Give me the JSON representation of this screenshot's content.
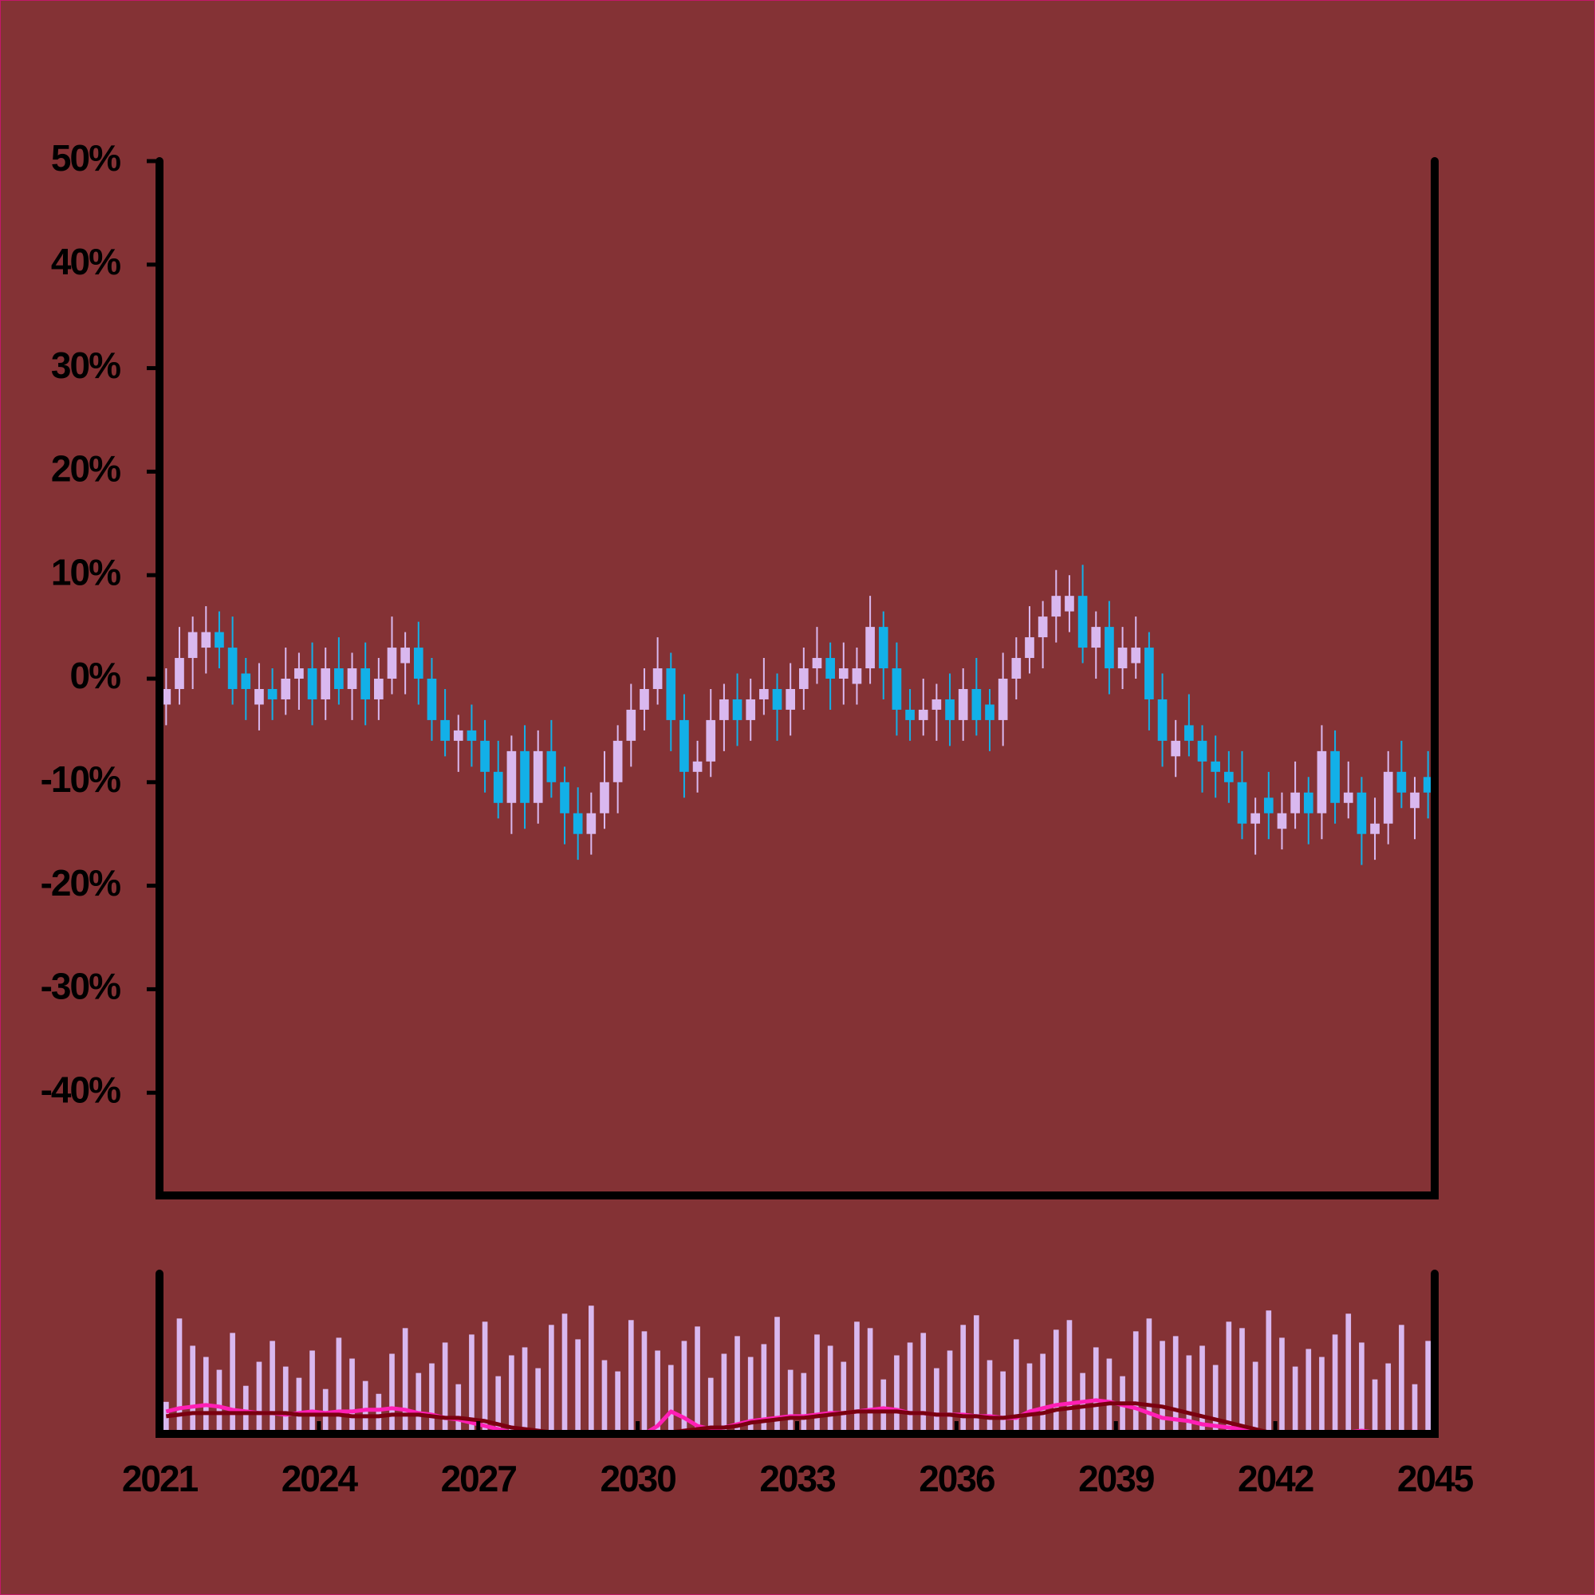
{
  "chart_data": {
    "type": "candlestick",
    "x": [
      2021.125,
      2021.375,
      2021.625,
      2021.875,
      2022.125,
      2022.375,
      2022.625,
      2022.875,
      2023.125,
      2023.375,
      2023.625,
      2023.875,
      2024.125,
      2024.375,
      2024.625,
      2024.875,
      2025.125,
      2025.375,
      2025.625,
      2025.875,
      2026.125,
      2026.375,
      2026.625,
      2026.875,
      2027.125,
      2027.375,
      2027.625,
      2027.875,
      2028.125,
      2028.375,
      2028.625,
      2028.875,
      2029.125,
      2029.375,
      2029.625,
      2029.875,
      2030.125,
      2030.375,
      2030.625,
      2030.875,
      2031.125,
      2031.375,
      2031.625,
      2031.875,
      2032.125,
      2032.375,
      2032.625,
      2032.875,
      2033.125,
      2033.375,
      2033.625,
      2033.875,
      2034.125,
      2034.375,
      2034.625,
      2034.875,
      2035.125,
      2035.375,
      2035.625,
      2035.875,
      2036.125,
      2036.375,
      2036.625,
      2036.875,
      2037.125,
      2037.375,
      2037.625,
      2037.875,
      2038.125,
      2038.375,
      2038.625,
      2038.875,
      2039.125,
      2039.375,
      2039.625,
      2039.875,
      2040.125,
      2040.375,
      2040.625,
      2040.875,
      2041.125,
      2041.375,
      2041.625,
      2041.875,
      2042.125,
      2042.375,
      2042.625,
      2042.875,
      2043.125,
      2043.375,
      2043.625,
      2043.875,
      2044.125,
      2044.375,
      2044.625,
      2044.875
    ],
    "open": [
      -2.5,
      -1,
      2,
      3,
      4.5,
      3,
      0.5,
      -2.5,
      -1,
      -2,
      0,
      1,
      -2,
      1,
      -1,
      1,
      -2,
      0,
      1.5,
      3,
      0,
      -4,
      -6,
      -5,
      -6,
      -9,
      -12,
      -7,
      -12,
      -7,
      -10,
      -13,
      -15,
      -13,
      -10,
      -6,
      -3,
      -1,
      1,
      -4,
      -9,
      -8,
      -4,
      -2,
      -4,
      -2,
      -1,
      -3,
      -1,
      1,
      2,
      0,
      -0.5,
      1,
      5,
      1,
      -3,
      -4,
      -3,
      -2,
      -4,
      -1,
      -2.5,
      -4,
      0,
      2,
      4,
      6,
      6.5,
      8,
      3,
      5,
      1,
      1.5,
      3,
      -2,
      -7.5,
      -4.5,
      -6,
      -8,
      -9,
      -10,
      -14,
      -11.5,
      -14.5,
      -13,
      -11,
      -13,
      -7,
      -12,
      -11,
      -15,
      -14,
      -9,
      -12.5,
      -9.5
    ],
    "high": [
      1,
      5,
      6,
      7,
      6.5,
      6,
      2,
      1.5,
      1,
      3,
      2.5,
      3.5,
      3,
      4,
      2.5,
      3.5,
      2,
      6,
      4.5,
      5.5,
      2,
      -1,
      -3.5,
      -2.5,
      -4,
      -6,
      -5.5,
      -4.5,
      -5,
      -4,
      -8.5,
      -10.5,
      -11,
      -7,
      -4.5,
      -0.5,
      1,
      4,
      2.5,
      -1.5,
      -6,
      -1,
      -0.5,
      0.5,
      0,
      2,
      0.5,
      1.5,
      3,
      5,
      3.5,
      3.5,
      3,
      8,
      6.5,
      3.5,
      -1,
      0,
      -0.5,
      0.5,
      1,
      2,
      -1,
      2.5,
      4,
      7,
      7.5,
      10.5,
      10,
      11,
      6.5,
      7.5,
      5,
      6,
      4.5,
      0.5,
      -4,
      -1.5,
      -4.5,
      -5.5,
      -7,
      -7,
      -11.5,
      -9,
      -11,
      -8,
      -9.5,
      -4.5,
      -5,
      -8,
      -9.5,
      -11.5,
      -7,
      -6,
      -9.5,
      -7
    ],
    "low": [
      -4.5,
      -2.5,
      -1,
      0.5,
      1,
      -2.5,
      -4,
      -5,
      -4,
      -3.5,
      -3,
      -4.5,
      -4,
      -2.5,
      -4,
      -4.5,
      -4,
      -1.5,
      -1.5,
      -2.5,
      -6,
      -7.5,
      -9,
      -8.5,
      -11,
      -13.5,
      -15,
      -14.5,
      -14,
      -11.5,
      -16,
      -17.5,
      -17,
      -14.5,
      -13,
      -8.5,
      -5,
      -2.5,
      -7,
      -11.5,
      -11,
      -9.5,
      -7,
      -6.5,
      -6,
      -3.5,
      -6,
      -5.5,
      -3,
      -0.5,
      -3,
      -2.5,
      -2.5,
      -0.5,
      -2,
      -5.5,
      -6,
      -5.5,
      -6,
      -6.5,
      -6,
      -5.5,
      -7,
      -6.5,
      -2,
      0.5,
      1,
      3.5,
      4.5,
      1.5,
      0,
      -1.5,
      -1,
      0,
      -5,
      -8.5,
      -9.5,
      -7.5,
      -11,
      -11.5,
      -12,
      -15.5,
      -17,
      -15.5,
      -16.5,
      -14.5,
      -16,
      -15.5,
      -14,
      -13.5,
      -18,
      -17.5,
      -16,
      -12.5,
      -15.5,
      -13.5
    ],
    "close": [
      -1,
      2,
      4.5,
      4.5,
      3,
      -1,
      -1,
      -1,
      -2,
      0,
      1,
      -2,
      1,
      -1,
      1,
      -2,
      0,
      3,
      3,
      0,
      -4,
      -6,
      -5,
      -6,
      -9,
      -12,
      -7,
      -12,
      -7,
      -10,
      -13,
      -15,
      -13,
      -10,
      -6,
      -3,
      -1,
      1,
      -4,
      -9,
      -8,
      -4,
      -2,
      -4,
      -2,
      -1,
      -3,
      -1,
      1,
      2,
      0,
      1,
      1,
      5,
      1,
      -3,
      -4,
      -3,
      -2,
      -4,
      -1,
      -4,
      -4,
      0,
      2,
      4,
      6,
      8,
      8,
      3,
      5,
      1,
      3,
      3,
      -2,
      -6,
      -6,
      -6,
      -8,
      -9,
      -10,
      -14,
      -13,
      -13,
      -13,
      -11,
      -13,
      -7,
      -12,
      -11,
      -15,
      -14,
      -9,
      -11,
      -11,
      -11
    ],
    "up_color": "#d9b8ef",
    "down_color": "#12b0e8",
    "ylim": [
      -50,
      50
    ],
    "yticks": [
      {
        "value": 50,
        "label": "50%"
      },
      {
        "value": 40,
        "label": "40%"
      },
      {
        "value": 30,
        "label": "30%"
      },
      {
        "value": 20,
        "label": "20%"
      },
      {
        "value": 10,
        "label": "10%"
      },
      {
        "value": 0,
        "label": "0%"
      },
      {
        "value": -10,
        "label": "-10%"
      },
      {
        "value": -20,
        "label": "-20%"
      },
      {
        "value": -30,
        "label": "-30%"
      },
      {
        "value": -40,
        "label": "-40%"
      }
    ],
    "xlim": [
      2021,
      2045
    ],
    "xticks": [
      2021,
      2024,
      2027,
      2030,
      2033,
      2036,
      2039,
      2042,
      2045
    ],
    "volume": {
      "color": "#d9b8ef",
      "ylim": [
        0,
        100
      ],
      "values": [
        20,
        72,
        55,
        48,
        40,
        63,
        30,
        45,
        58,
        42,
        35,
        52,
        28,
        60,
        47,
        33,
        25,
        50,
        66,
        38,
        44,
        57,
        31,
        62,
        70,
        36,
        49,
        54,
        41,
        68,
        75,
        59,
        80,
        46,
        39,
        71,
        64,
        52,
        43,
        58,
        67,
        35,
        50,
        61,
        48,
        56,
        73,
        40,
        38,
        62,
        55,
        45,
        70,
        66,
        34,
        49,
        57,
        63,
        41,
        52,
        68,
        74,
        46,
        39,
        59,
        44,
        50,
        65,
        71,
        38,
        54,
        47,
        36,
        64,
        72,
        58,
        61,
        49,
        55,
        43,
        70,
        66,
        45,
        77,
        60,
        42,
        53,
        48,
        62,
        75,
        57,
        34,
        44,
        68,
        31,
        58
      ]
    },
    "lines": [
      {
        "color": "#ff1fb4",
        "values": [
          14,
          16,
          17,
          18,
          17,
          15,
          14,
          13,
          13,
          12,
          13,
          14,
          13,
          14,
          14,
          15,
          15,
          16,
          15,
          13,
          12,
          10,
          9,
          7,
          5,
          3,
          1,
          0,
          0,
          0,
          0,
          0,
          0,
          0,
          0,
          0,
          0,
          5,
          14,
          10,
          5,
          3,
          4,
          6,
          8,
          9,
          10,
          11,
          11,
          12,
          13,
          13,
          14,
          15,
          16,
          15,
          13,
          13,
          12,
          12,
          12,
          11,
          11,
          10,
          10,
          14,
          16,
          18,
          19,
          20,
          21,
          20,
          18,
          16,
          13,
          10,
          9,
          8,
          6,
          5,
          4,
          3,
          1,
          0,
          0,
          0,
          0,
          0,
          0,
          1,
          2,
          1,
          0,
          0,
          0,
          0
        ]
      },
      {
        "color": "#7a0010",
        "values": [
          11,
          12,
          13,
          13,
          13,
          13,
          13,
          13,
          13,
          13,
          12,
          12,
          12,
          12,
          11,
          11,
          11,
          12,
          12,
          12,
          11,
          10,
          10,
          9,
          8,
          6,
          4,
          3,
          2,
          1,
          1,
          0,
          0,
          0,
          0,
          0,
          0,
          0,
          1,
          2,
          3,
          4,
          4,
          5,
          7,
          8,
          9,
          10,
          10,
          11,
          12,
          13,
          14,
          14,
          14,
          14,
          13,
          13,
          12,
          12,
          11,
          11,
          10,
          10,
          11,
          12,
          13,
          15,
          16,
          17,
          18,
          19,
          19,
          19,
          18,
          17,
          15,
          13,
          11,
          9,
          7,
          5,
          3,
          1,
          0,
          0,
          0,
          0,
          0,
          0,
          0,
          0,
          0,
          0,
          0,
          0
        ]
      }
    ]
  }
}
